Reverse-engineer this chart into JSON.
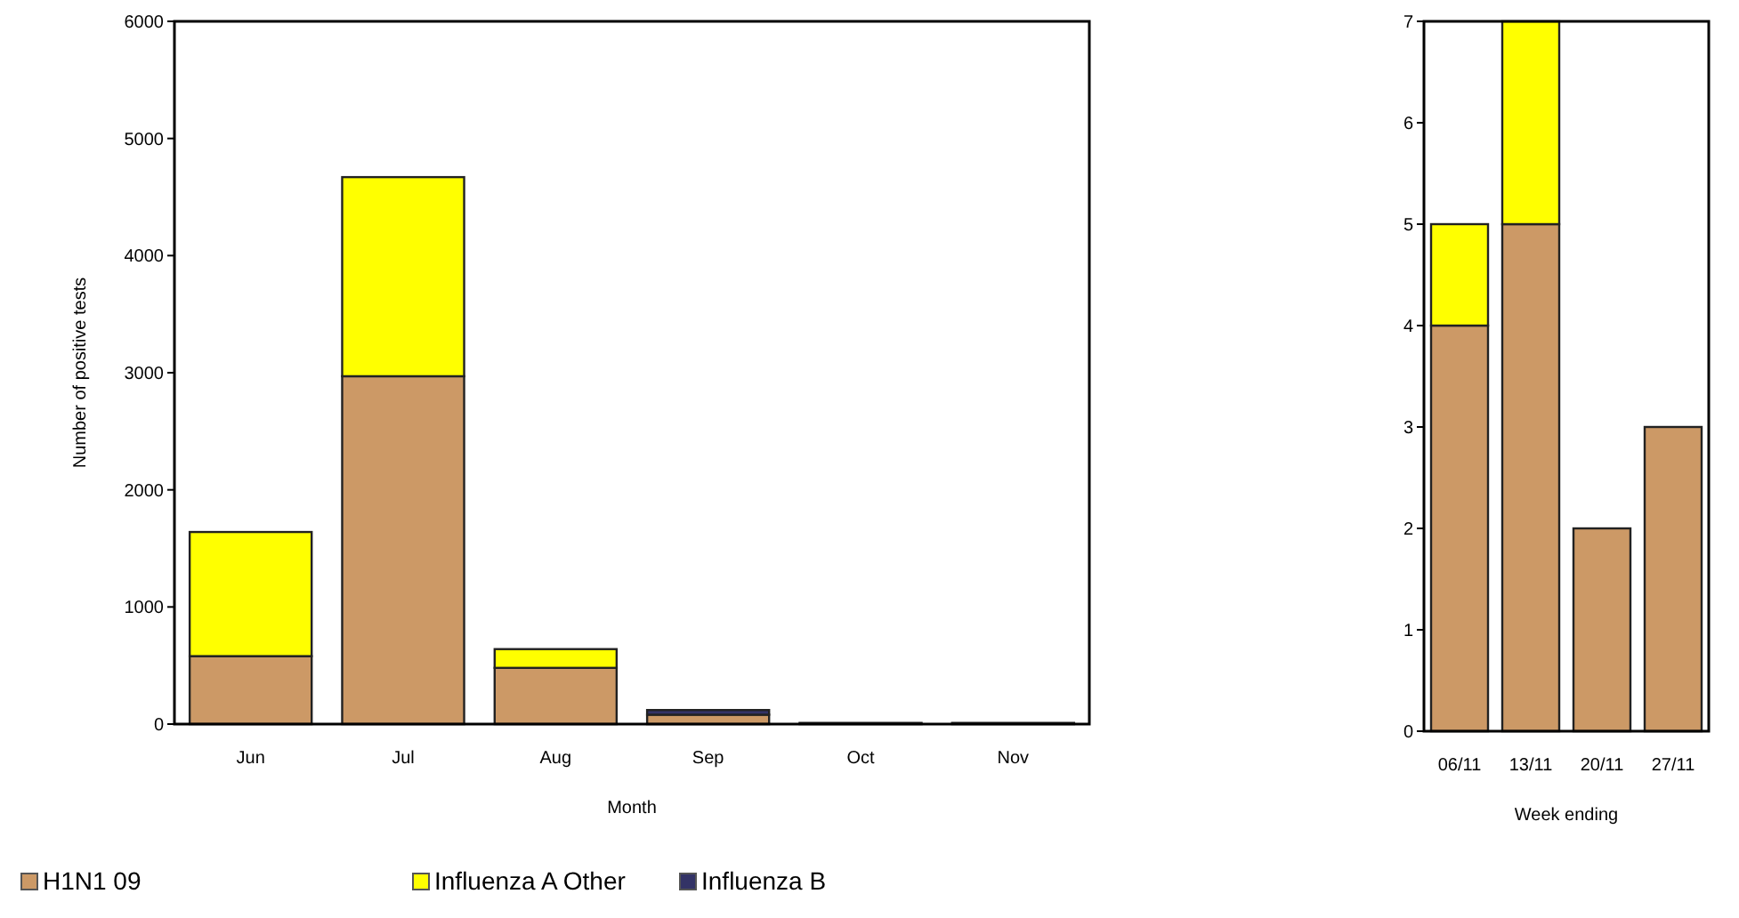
{
  "chart_data": [
    {
      "type": "bar",
      "stacked": true,
      "xlabel": "Month",
      "ylabel": "Number of positive tests",
      "categories": [
        "Jun",
        "Jul",
        "Aug",
        "Sep",
        "Oct",
        "Nov"
      ],
      "series": [
        {
          "name": "H1N1 09",
          "color": "#cc9966",
          "values": [
            580,
            2970,
            480,
            80,
            null,
            null
          ]
        },
        {
          "name": "Influenza A Other",
          "color": "#ffff00",
          "values": [
            1060,
            1700,
            160,
            0,
            0,
            0
          ]
        },
        {
          "name": "Influenza B",
          "color": "#333366",
          "values": [
            0,
            0,
            0,
            40,
            10,
            10
          ]
        }
      ],
      "ylim": [
        0,
        6000
      ],
      "yticks": [
        0,
        1000,
        2000,
        3000,
        4000,
        5000,
        6000
      ],
      "legend": "bottom",
      "grid": false
    },
    {
      "type": "bar",
      "stacked": true,
      "xlabel": "Week ending",
      "categories": [
        "06/11",
        "13/11",
        "20/11",
        "27/11"
      ],
      "series": [
        {
          "color": "#cc9966",
          "values": [
            4,
            5,
            2,
            3
          ]
        },
        {
          "color": "#ffff00",
          "values": [
            1,
            2,
            0,
            0
          ]
        }
      ],
      "ylim": [
        0,
        7
      ],
      "yticks": [
        0,
        1,
        2,
        3,
        4,
        5,
        6,
        7
      ],
      "legend": false,
      "grid": false
    }
  ]
}
